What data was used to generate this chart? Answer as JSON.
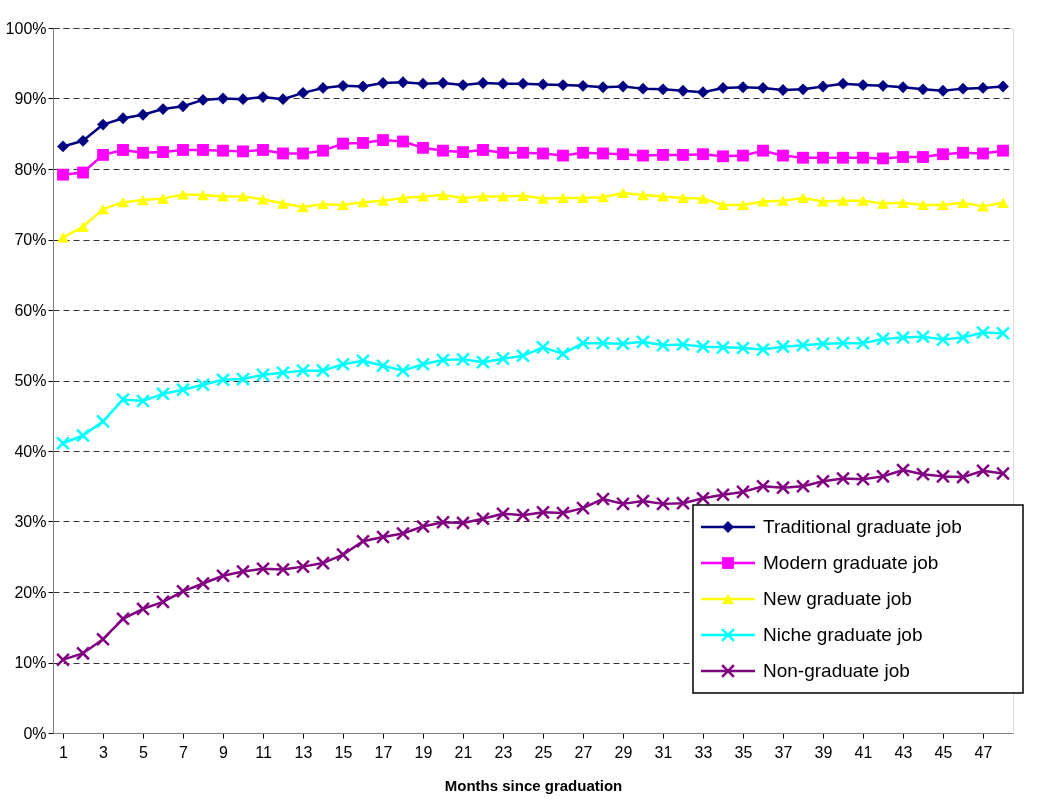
{
  "chart_data": {
    "type": "line",
    "xlabel": "Months since graduation",
    "x": [
      1,
      2,
      3,
      4,
      5,
      6,
      7,
      8,
      9,
      10,
      11,
      12,
      13,
      14,
      15,
      16,
      17,
      18,
      19,
      20,
      21,
      22,
      23,
      24,
      25,
      26,
      27,
      28,
      29,
      30,
      31,
      32,
      33,
      34,
      35,
      36,
      37,
      38,
      39,
      40,
      41,
      42,
      43,
      44,
      45,
      46,
      47,
      48
    ],
    "xlim": [
      0.5,
      48.5
    ],
    "xticks": [
      1,
      3,
      5,
      7,
      9,
      11,
      13,
      15,
      17,
      19,
      21,
      23,
      25,
      27,
      29,
      31,
      33,
      35,
      37,
      39,
      41,
      43,
      45,
      47
    ],
    "ylim": [
      0,
      100
    ],
    "yticks": [
      {
        "value": 0,
        "label": "0%"
      },
      {
        "value": 10,
        "label": "10%"
      },
      {
        "value": 20,
        "label": "20%"
      },
      {
        "value": 30,
        "label": "30%"
      },
      {
        "value": 40,
        "label": "40%"
      },
      {
        "value": 50,
        "label": "50%"
      },
      {
        "value": 60,
        "label": "60%"
      },
      {
        "value": 70,
        "label": "70%"
      },
      {
        "value": 80,
        "label": "80%"
      },
      {
        "value": 90,
        "label": "90%"
      },
      {
        "value": 100,
        "label": "100%"
      }
    ],
    "grid": "y",
    "legend": "bottom right",
    "line_style": "solid",
    "series": [
      {
        "name": "Traditional graduate job",
        "color": "#000080",
        "marker": "diamond",
        "values": [
          83.2,
          84.0,
          86.3,
          87.2,
          87.7,
          88.5,
          88.9,
          89.8,
          90.0,
          89.9,
          90.2,
          89.9,
          90.8,
          91.5,
          91.8,
          91.7,
          92.2,
          92.3,
          92.1,
          92.2,
          91.9,
          92.2,
          92.1,
          92.1,
          92.0,
          91.9,
          91.8,
          91.6,
          91.7,
          91.4,
          91.3,
          91.1,
          90.9,
          91.5,
          91.6,
          91.5,
          91.2,
          91.3,
          91.7,
          92.1,
          91.9,
          91.8,
          91.6,
          91.3,
          91.1,
          91.4,
          91.5,
          91.7
        ]
      },
      {
        "name": "Modern graduate job",
        "color": "#ff00ff",
        "marker": "square",
        "values": [
          79.2,
          79.5,
          82.0,
          82.7,
          82.3,
          82.4,
          82.7,
          82.7,
          82.6,
          82.5,
          82.7,
          82.2,
          82.2,
          82.6,
          83.6,
          83.7,
          84.1,
          83.9,
          83.0,
          82.6,
          82.4,
          82.7,
          82.3,
          82.3,
          82.2,
          81.9,
          82.3,
          82.2,
          82.1,
          81.9,
          82.0,
          82.0,
          82.1,
          81.8,
          81.9,
          82.6,
          81.9,
          81.6,
          81.6,
          81.6,
          81.6,
          81.5,
          81.7,
          81.7,
          82.1,
          82.3,
          82.2,
          82.6
        ]
      },
      {
        "name": "New graduate job",
        "color": "#ffff00",
        "marker": "triangle",
        "values": [
          70.3,
          71.8,
          74.3,
          75.3,
          75.6,
          75.8,
          76.4,
          76.3,
          76.1,
          76.1,
          75.7,
          75.1,
          74.6,
          75.0,
          74.9,
          75.3,
          75.5,
          75.9,
          76.1,
          76.3,
          75.9,
          76.1,
          76.1,
          76.2,
          75.8,
          75.9,
          75.9,
          76.0,
          76.6,
          76.3,
          76.1,
          75.9,
          75.8,
          74.9,
          74.9,
          75.4,
          75.5,
          75.9,
          75.4,
          75.5,
          75.5,
          75.1,
          75.2,
          74.9,
          74.9,
          75.2,
          74.7,
          75.2
        ]
      },
      {
        "name": "Niche graduate job",
        "color": "#00ffff",
        "marker": "cross",
        "values": [
          41.1,
          42.2,
          44.2,
          47.3,
          47.1,
          48.1,
          48.7,
          49.4,
          50.1,
          50.2,
          50.8,
          51.1,
          51.4,
          51.4,
          52.3,
          52.8,
          52.1,
          51.4,
          52.3,
          52.9,
          53.0,
          52.6,
          53.1,
          53.5,
          54.7,
          53.8,
          55.3,
          55.3,
          55.2,
          55.5,
          55.0,
          55.1,
          54.8,
          54.7,
          54.6,
          54.4,
          54.8,
          55.0,
          55.2,
          55.3,
          55.3,
          55.9,
          56.1,
          56.2,
          55.8,
          56.1,
          56.8,
          56.7
        ]
      },
      {
        "name": "Non-graduate job",
        "color": "#800080",
        "marker": "cross",
        "values": [
          10.4,
          11.3,
          13.3,
          16.2,
          17.6,
          18.6,
          20.1,
          21.2,
          22.3,
          22.9,
          23.3,
          23.2,
          23.6,
          24.1,
          25.3,
          27.2,
          27.8,
          28.3,
          29.3,
          29.9,
          29.8,
          30.4,
          31.1,
          30.9,
          31.3,
          31.2,
          31.9,
          33.2,
          32.5,
          32.9,
          32.5,
          32.6,
          33.3,
          33.8,
          34.2,
          35.0,
          34.8,
          35.0,
          35.7,
          36.1,
          36.0,
          36.4,
          37.3,
          36.7,
          36.4,
          36.3,
          37.2,
          36.8
        ]
      }
    ]
  }
}
